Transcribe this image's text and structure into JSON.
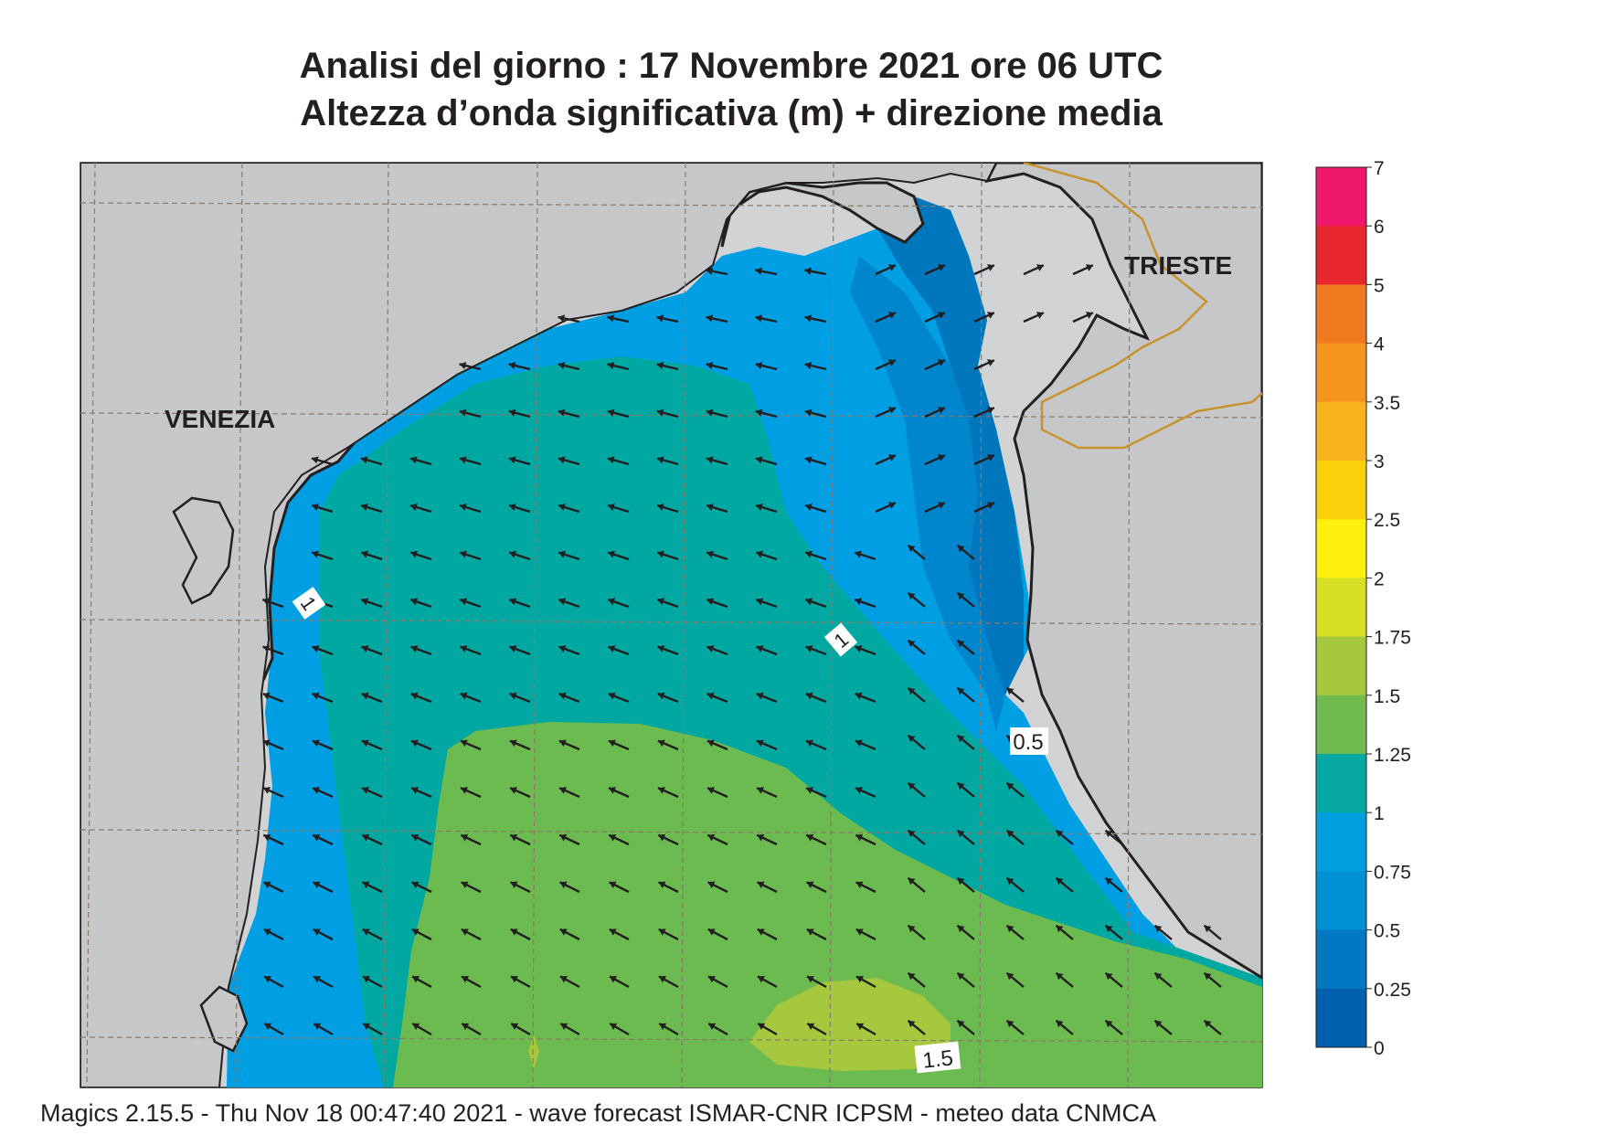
{
  "title": {
    "line1": "Analisi del giorno :  17 Novembre  2021   ore 06 UTC",
    "line2": "Altezza d’onda significativa (m) + direzione media"
  },
  "map": {
    "place_labels": [
      "VENEZIA",
      "TRIESTE"
    ],
    "contour_labels": [
      "1",
      "1",
      "0.5",
      "1.5"
    ]
  },
  "legend": {
    "values": [
      "7",
      "6",
      "5",
      "4",
      "3.5",
      "3",
      "2.5",
      "2",
      "1.75",
      "1.5",
      "1.25",
      "1",
      "0.75",
      "0.5",
      "0.25",
      "0"
    ],
    "colors": [
      "#f0186c",
      "#e8262e",
      "#f07a20",
      "#f4961e",
      "#f8b21e",
      "#f8d00c",
      "#fcf00c",
      "#d6e024",
      "#a6c83e",
      "#70ba4e",
      "#08a8a2",
      "#00a0e0",
      "#0090d4",
      "#0078c2",
      "#0060ae"
    ]
  },
  "footer": "Magics 2.15.5 - Thu Nov 18 00:47:40 2021 - wave forecast  ISMAR-CNR  ICPSM - meteo data   CNMCA"
}
